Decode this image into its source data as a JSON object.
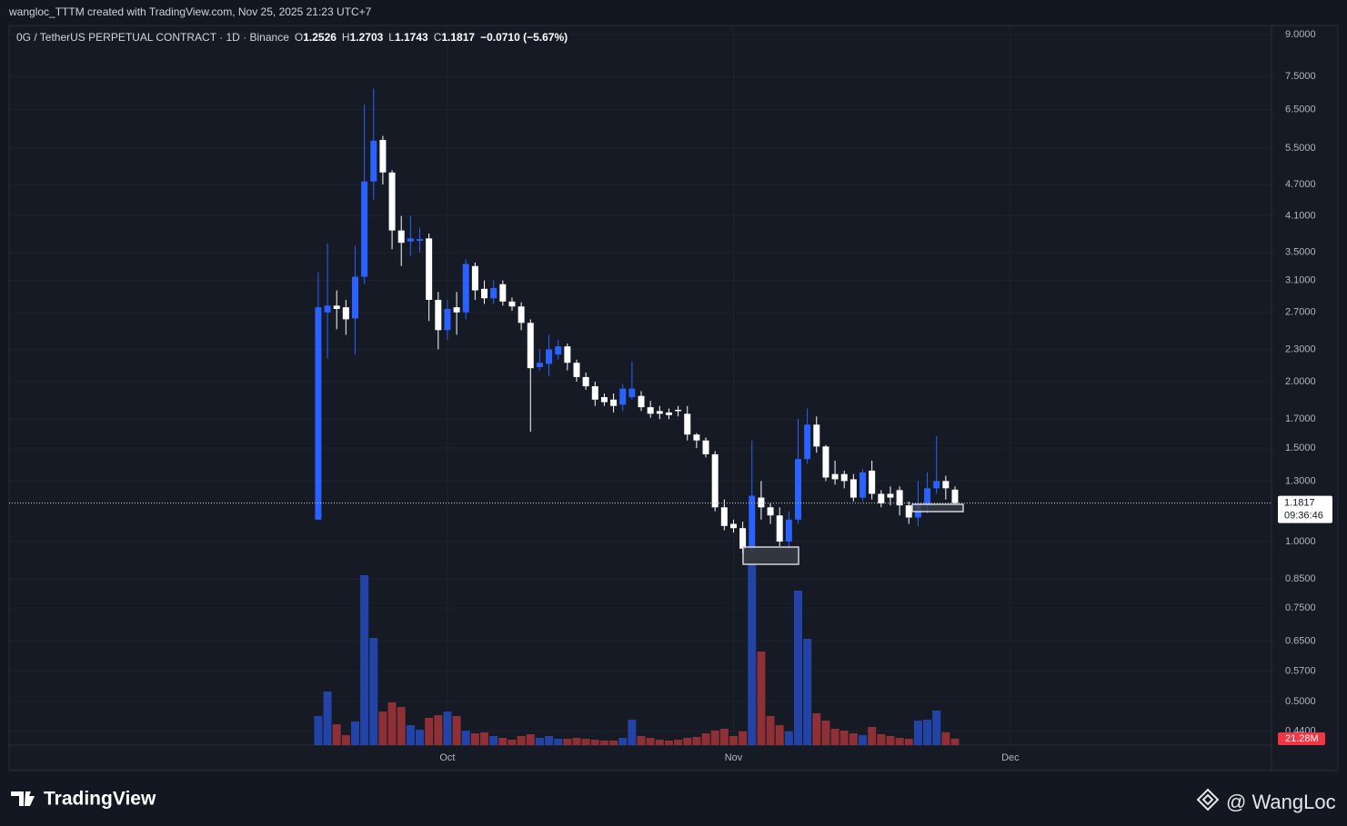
{
  "header": {
    "byline": "wangloc_TTTM created with TradingView.com, Nov 25, 2025 21:23 UTC+7"
  },
  "chart_data": {
    "type": "candlestick",
    "symbol": "0G / TetherUS PERPETUAL CONTRACT · 1D · Binance",
    "ohlc_labels": [
      "O",
      "H",
      "L",
      "C"
    ],
    "change": "−0.0710 (−5.67%)",
    "x": [
      -14,
      -13,
      -12,
      -11,
      -10,
      -9,
      -8,
      -7,
      -6,
      -5,
      -4,
      -3,
      -2,
      -1,
      0,
      1,
      2,
      3,
      4,
      5,
      6,
      7,
      8,
      9,
      10,
      11,
      12,
      13,
      14,
      15,
      16,
      17,
      18,
      19,
      20,
      21,
      22,
      23,
      24,
      25,
      26,
      27,
      28,
      29,
      30,
      31,
      32,
      33,
      34,
      35,
      36,
      37,
      38,
      39,
      40,
      41,
      42,
      43,
      44,
      45,
      46,
      47,
      48,
      49,
      50,
      51,
      52,
      53,
      54,
      55
    ],
    "open": [
      1.1,
      2.7,
      2.78,
      2.76,
      2.63,
      3.15,
      4.76,
      5.7,
      4.95,
      3.85,
      3.67,
      3.68,
      3.72,
      2.85,
      2.5,
      2.76,
      2.7,
      3.3,
      2.99,
      2.87,
      3.05,
      2.83,
      2.77,
      2.58,
      2.13,
      2.16,
      2.25,
      2.33,
      2.17,
      2.04,
      1.96,
      1.87,
      1.85,
      1.81,
      1.87,
      1.88,
      1.79,
      1.76,
      1.75,
      1.77,
      1.74,
      1.59,
      1.55,
      1.46,
      1.16,
      1.08,
      1.06,
      0.97,
      1.21,
      1.16,
      1.12,
      1.0,
      1.1,
      1.43,
      1.66,
      1.51,
      1.34,
      1.34,
      1.31,
      1.21,
      1.36,
      1.23,
      1.23,
      1.25,
      1.17,
      1.11,
      1.17,
      1.26,
      1.3,
      1.2526
    ],
    "high": [
      3.21,
      3.64,
      2.97,
      2.85,
      3.6,
      6.65,
      7.12,
      5.8,
      5.0,
      4.1,
      4.1,
      3.9,
      3.8,
      2.95,
      2.85,
      2.95,
      3.4,
      3.35,
      3.1,
      3.1,
      3.1,
      2.88,
      2.82,
      2.62,
      2.3,
      2.45,
      2.4,
      2.36,
      2.2,
      2.08,
      2.0,
      1.9,
      1.9,
      1.98,
      2.18,
      1.92,
      1.84,
      1.8,
      1.78,
      1.8,
      1.8,
      1.6,
      1.57,
      1.48,
      1.2,
      1.1,
      1.09,
      1.55,
      1.3,
      1.18,
      1.16,
      1.14,
      1.7,
      1.78,
      1.72,
      1.52,
      1.42,
      1.36,
      1.34,
      1.37,
      1.42,
      1.25,
      1.27,
      1.27,
      1.19,
      1.3,
      1.35,
      1.58,
      1.33,
      1.2703
    ],
    "low": [
      1.1,
      2.21,
      2.51,
      2.45,
      2.25,
      3.05,
      4.4,
      4.7,
      3.55,
      3.3,
      3.45,
      3.5,
      2.6,
      2.3,
      2.4,
      2.45,
      2.62,
      2.85,
      2.8,
      2.8,
      2.78,
      2.72,
      2.5,
      1.61,
      2.1,
      2.05,
      2.2,
      2.1,
      2.0,
      1.93,
      1.8,
      1.8,
      1.75,
      1.76,
      1.85,
      1.76,
      1.71,
      1.7,
      1.7,
      1.72,
      1.55,
      1.5,
      1.44,
      1.14,
      1.05,
      1.04,
      0.95,
      0.95,
      1.1,
      1.08,
      0.98,
      0.97,
      1.08,
      1.4,
      1.47,
      1.3,
      1.28,
      1.26,
      1.19,
      1.19,
      1.2,
      1.16,
      1.17,
      1.12,
      1.08,
      1.07,
      1.13,
      1.23,
      1.2,
      1.1743
    ],
    "close": [
      2.76,
      2.78,
      2.74,
      2.62,
      3.15,
      4.76,
      5.68,
      4.95,
      3.85,
      3.65,
      3.72,
      3.71,
      2.85,
      2.5,
      2.74,
      2.7,
      3.33,
      2.97,
      2.87,
      3.0,
      2.83,
      2.77,
      2.58,
      2.12,
      2.17,
      2.3,
      2.33,
      2.17,
      2.04,
      1.96,
      1.85,
      1.83,
      1.8,
      1.94,
      1.94,
      1.79,
      1.74,
      1.74,
      1.73,
      1.76,
      1.59,
      1.55,
      1.46,
      1.16,
      1.07,
      1.06,
      0.97,
      1.22,
      1.16,
      1.12,
      1.0,
      1.1,
      1.43,
      1.66,
      1.51,
      1.32,
      1.31,
      1.3,
      1.21,
      1.35,
      1.23,
      1.18,
      1.21,
      1.17,
      1.11,
      1.18,
      1.26,
      1.3,
      1.26,
      1.1817
    ],
    "volume": {
      "values": [
        96,
        177,
        69,
        33,
        78,
        561,
        354,
        111,
        141,
        126,
        66,
        51,
        90,
        99,
        111,
        96,
        48,
        39,
        42,
        30,
        24,
        18,
        30,
        36,
        24,
        30,
        21,
        21,
        24,
        21,
        18,
        15,
        15,
        24,
        84,
        30,
        24,
        18,
        15,
        18,
        24,
        27,
        39,
        48,
        54,
        30,
        45,
        600,
        309,
        96,
        66,
        45,
        510,
        351,
        105,
        81,
        54,
        48,
        39,
        33,
        60,
        36,
        30,
        24,
        21,
        81,
        84,
        114,
        42,
        21.28
      ],
      "value_labels": [
        null,
        null,
        null,
        null,
        null,
        null,
        null,
        null,
        null,
        null,
        null,
        null,
        null,
        null,
        null,
        null,
        null,
        null,
        null,
        null,
        null,
        null,
        null,
        null,
        null,
        null,
        null,
        null,
        null,
        null,
        null,
        null,
        null,
        null,
        null,
        null,
        null,
        null,
        null,
        null,
        null,
        null,
        null,
        null,
        null,
        null,
        null,
        null,
        null,
        null,
        null,
        null,
        null,
        null,
        null,
        null,
        null,
        null,
        null,
        null,
        null,
        null,
        null,
        null,
        null,
        null,
        null,
        null,
        null,
        "21.28M"
      ]
    },
    "xlim": [
      -47.5,
      89.3
    ],
    "xticks": [
      {
        "value": 0,
        "label": "Oct"
      },
      {
        "value": 31,
        "label": "Nov"
      },
      {
        "value": 61,
        "label": "Dec"
      }
    ],
    "ylim": [
      0.414,
      9.36
    ],
    "log_scale": true,
    "yticks": [
      {
        "value": 9,
        "label": "9.0000"
      },
      {
        "value": 7.5,
        "label": "7.5000"
      },
      {
        "value": 6.5,
        "label": "6.5000"
      },
      {
        "value": 5.5,
        "label": "5.5000"
      },
      {
        "value": 4.7,
        "label": "4.7000"
      },
      {
        "value": 4.1,
        "label": "4.1000"
      },
      {
        "value": 3.5,
        "label": "3.5000"
      },
      {
        "value": 3.1,
        "label": "3.1000"
      },
      {
        "value": 2.7,
        "label": "2.7000"
      },
      {
        "value": 2.3,
        "label": "2.3000"
      },
      {
        "value": 2,
        "label": "2.0000"
      },
      {
        "value": 1.7,
        "label": "1.7000"
      },
      {
        "value": 1.5,
        "label": "1.5000"
      },
      {
        "value": 1.3,
        "label": "1.3000"
      },
      {
        "value": 1,
        "label": "1.0000"
      },
      {
        "value": 0.85,
        "label": "0.8500"
      },
      {
        "value": 0.75,
        "label": "0.7500"
      },
      {
        "value": 0.65,
        "label": "0.6500"
      },
      {
        "value": 0.57,
        "label": "0.5700"
      },
      {
        "value": 0.5,
        "label": "0.5000"
      },
      {
        "value": 0.44,
        "label": "0.4400"
      }
    ],
    "countdown": "09:36:46",
    "grid": true,
    "up_color": "#2962ff",
    "down_color": "#ffffff",
    "volume_up_color": "#2443a6",
    "volume_down_color": "#8e3035"
  },
  "footer": {
    "logo": "TradingView",
    "watermark": "@ WangLoc"
  }
}
